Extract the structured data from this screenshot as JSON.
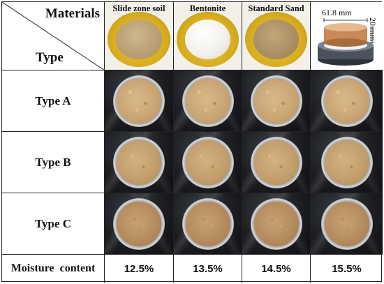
{
  "header": {
    "materials_label": "Materials",
    "type_label": "Type",
    "materials": [
      {
        "name": "Slide zone soil",
        "powder": "soil"
      },
      {
        "name": "Bentonite",
        "powder": "bentonite"
      },
      {
        "name": "Standard Sand",
        "powder": "sand"
      }
    ],
    "specimen_diagram": {
      "diameter_label": "61.8 mm",
      "height_label": "20 mm"
    }
  },
  "rows": [
    {
      "label": "Type A",
      "sample_style": "a"
    },
    {
      "label": "Type B",
      "sample_style": "b"
    },
    {
      "label": "Type C",
      "sample_style": "c"
    }
  ],
  "moisture": {
    "label": "Moisture content",
    "values": [
      "12.5%",
      "13.5%",
      "14.5%",
      "15.5%"
    ]
  },
  "colors": {
    "grid_border": "#222222",
    "photo_background": "#1c1e22",
    "plate_yellow": "#d7ad1f",
    "specimen_copper": "#c98a55",
    "specimen_ring": "#4a525e"
  }
}
